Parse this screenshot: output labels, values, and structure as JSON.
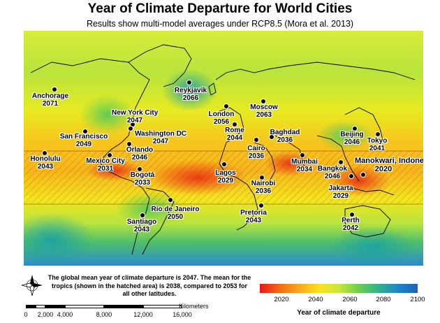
{
  "title": "Year of Climate Departure for World Cities",
  "subtitle": "Results show multi-model averages under RCP8.5 (Mora et al. 2013)",
  "note": "The global mean year of climate departure is 2047. The mean for the tropics (shown in the hatched area) is 2038, compared to 2053 for all other latitudes.",
  "cities": [
    {
      "name": "Anchorage",
      "year": "2071"
    },
    {
      "name": "Reykjavik",
      "year": "2066"
    },
    {
      "name": "Moscow",
      "year": "2063"
    },
    {
      "name": "London",
      "year": "2056"
    },
    {
      "name": "New York City",
      "year": "2047"
    },
    {
      "name": "Washington DC",
      "year": "2047"
    },
    {
      "name": "San Francisco",
      "year": "2049"
    },
    {
      "name": "Rome",
      "year": "2044"
    },
    {
      "name": "Baghdad",
      "year": "2036"
    },
    {
      "name": "Beijing",
      "year": "2046"
    },
    {
      "name": "Tokyo",
      "year": "2041"
    },
    {
      "name": "Honolulu",
      "year": "2043"
    },
    {
      "name": "Mexico City",
      "year": "2031"
    },
    {
      "name": "Orlando",
      "year": "2046"
    },
    {
      "name": "Cairo",
      "year": "2036"
    },
    {
      "name": "Mumbai",
      "year": "2034"
    },
    {
      "name": "Bangkok",
      "year": "2046"
    },
    {
      "name": "Manokwari, Indonesia",
      "year": "2020"
    },
    {
      "name": "Bogotá",
      "year": "2033"
    },
    {
      "name": "Lagos",
      "year": "2029"
    },
    {
      "name": "Nairobi",
      "year": "2036"
    },
    {
      "name": "Jakarta",
      "year": "2029"
    },
    {
      "name": "Rio de Janeiro",
      "year": "2050"
    },
    {
      "name": "Pretoria",
      "year": "2043"
    },
    {
      "name": "Santiago",
      "year": "2043"
    },
    {
      "name": "Perth",
      "year": "2042"
    }
  ],
  "scale_bar": {
    "unit": "Kilometers",
    "ticks": [
      "0",
      "2,000",
      "4,000",
      "8,000",
      "12,000",
      "16,000"
    ]
  },
  "legend": {
    "label": "Year of climate departure",
    "ticks": [
      "2020",
      "2040",
      "2060",
      "2080",
      "2100"
    ],
    "colors": [
      "#e8141a",
      "#f56a12",
      "#f9a81b",
      "#fbe219",
      "#c9e83a",
      "#6dcf4f",
      "#2fb489",
      "#1f86c9",
      "#1f5fb8"
    ]
  },
  "colors": {
    "ocean_tropics": "#f2b71c",
    "ocean_high": "#c8ea3c",
    "land_outline": "#000000"
  }
}
